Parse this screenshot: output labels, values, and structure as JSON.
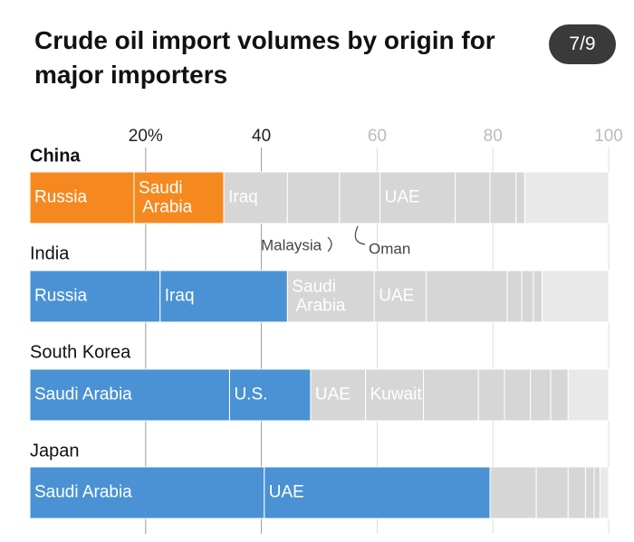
{
  "page_indicator": "7/9",
  "chart_data": {
    "type": "stacked-bar-horizontal",
    "title": "Crude oil import volumes by origin for major importers",
    "categories": [
      "China",
      "India",
      "South Korea",
      "Japan"
    ],
    "xlim": [
      0,
      100
    ],
    "xticks": [
      {
        "value": 20,
        "label": "20%"
      },
      40,
      60,
      80,
      100
    ],
    "xtick_colors": [
      "#222222",
      "#222222",
      "#bbbbbb",
      "#bbbbbb",
      "#bbbbbb"
    ],
    "grid": true,
    "bars": [
      {
        "segments": [
          {
            "label": "Russia",
            "value": 18,
            "color": "#f5891f"
          },
          {
            "label": "Saudi Arabia",
            "value": 15.5,
            "color": "#f5891f"
          },
          {
            "label": "Iraq",
            "value": 11,
            "color": "#d6d6d6"
          },
          {
            "label": null,
            "value": 9,
            "color": "#d6d6d6"
          },
          {
            "label": null,
            "value": 7,
            "color": "#d6d6d6"
          },
          {
            "label": "UAE",
            "value": 13,
            "color": "#d6d6d6"
          },
          {
            "label": null,
            "value": 6,
            "color": "#d6d6d6"
          },
          {
            "label": null,
            "value": 4.5,
            "color": "#d6d6d6"
          },
          {
            "label": null,
            "value": 1.5,
            "color": "#d6d6d6"
          },
          {
            "label": null,
            "value": 14.5,
            "color": "#e9e9e9"
          }
        ]
      },
      {
        "segments": [
          {
            "label": "Russia",
            "value": 22.5,
            "color": "#4a92d4"
          },
          {
            "label": "Iraq",
            "value": 22,
            "color": "#4a92d4"
          },
          {
            "label": "Saudi Arabia",
            "value": 15,
            "color": "#d6d6d6"
          },
          {
            "label": "UAE",
            "value": 9,
            "color": "#d6d6d6"
          },
          {
            "label": null,
            "value": 14,
            "color": "#d6d6d6"
          },
          {
            "label": null,
            "value": 2.5,
            "color": "#d6d6d6"
          },
          {
            "label": null,
            "value": 2,
            "color": "#d6d6d6"
          },
          {
            "label": null,
            "value": 1.5,
            "color": "#d6d6d6"
          },
          {
            "label": null,
            "value": 11.5,
            "color": "#e9e9e9"
          }
        ]
      },
      {
        "segments": [
          {
            "label": "Saudi Arabia",
            "value": 34.5,
            "color": "#4a92d4"
          },
          {
            "label": "U.S.",
            "value": 14,
            "color": "#4a92d4"
          },
          {
            "label": "UAE",
            "value": 9.5,
            "color": "#d6d6d6"
          },
          {
            "label": "Kuwait",
            "value": 10,
            "color": "#d6d6d6"
          },
          {
            "label": null,
            "value": 9.5,
            "color": "#d6d6d6"
          },
          {
            "label": null,
            "value": 4.5,
            "color": "#d6d6d6"
          },
          {
            "label": null,
            "value": 4.5,
            "color": "#d6d6d6"
          },
          {
            "label": null,
            "value": 3.5,
            "color": "#d6d6d6"
          },
          {
            "label": null,
            "value": 3,
            "color": "#d6d6d6"
          },
          {
            "label": null,
            "value": 7,
            "color": "#e9e9e9"
          }
        ]
      },
      {
        "segments": [
          {
            "label": "Saudi Arabia",
            "value": 40.5,
            "color": "#4a92d4"
          },
          {
            "label": "UAE",
            "value": 39,
            "color": "#4a92d4"
          },
          {
            "label": null,
            "value": 8,
            "color": "#d6d6d6"
          },
          {
            "label": null,
            "value": 5.5,
            "color": "#d6d6d6"
          },
          {
            "label": null,
            "value": 3,
            "color": "#d6d6d6"
          },
          {
            "label": null,
            "value": 1.5,
            "color": "#d6d6d6"
          },
          {
            "label": null,
            "value": 1,
            "color": "#d6d6d6"
          },
          {
            "label": null,
            "value": 1.5,
            "color": "#e9e9e9"
          }
        ]
      }
    ],
    "annotations": [
      "Malaysia",
      "Oman"
    ]
  }
}
